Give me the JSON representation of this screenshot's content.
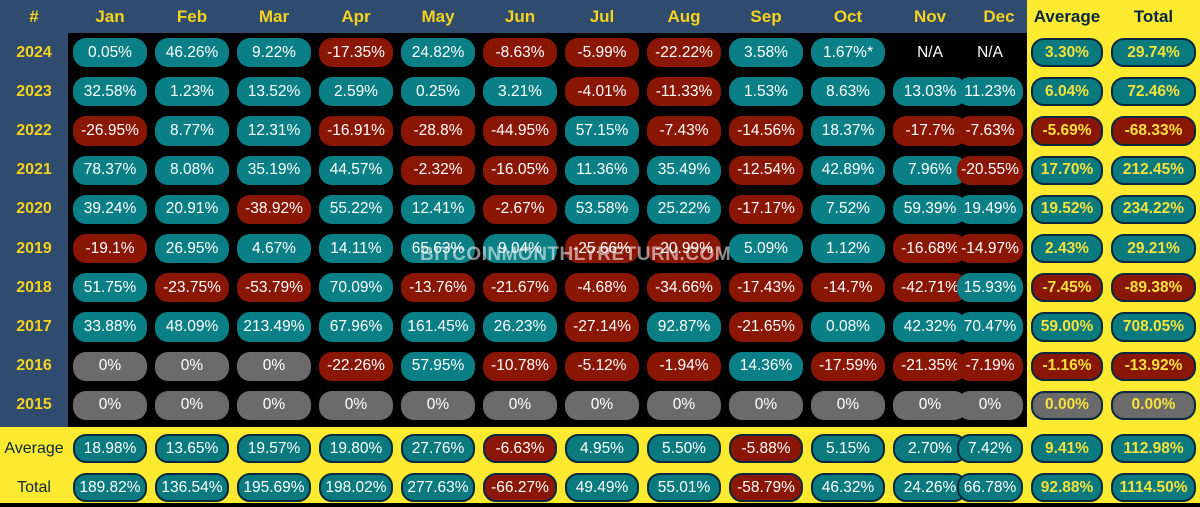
{
  "chart_data": {
    "type": "table",
    "corner_label": "#",
    "columns": [
      "Jan",
      "Feb",
      "Mar",
      "Apr",
      "May",
      "Jun",
      "Jul",
      "Aug",
      "Sep",
      "Oct",
      "Nov",
      "Dec",
      "Average",
      "Total"
    ],
    "rows": [
      {
        "label": "2024",
        "values": [
          "0.05%",
          "46.26%",
          "9.22%",
          "-17.35%",
          "24.82%",
          "-8.63%",
          "-5.99%",
          "-22.22%",
          "3.58%",
          "1.67%*",
          "N/A",
          "N/A",
          "3.30%",
          "29.74%"
        ]
      },
      {
        "label": "2023",
        "values": [
          "32.58%",
          "1.23%",
          "13.52%",
          "2.59%",
          "0.25%",
          "3.21%",
          "-4.01%",
          "-11.33%",
          "1.53%",
          "8.63%",
          "13.03%",
          "11.23%",
          "6.04%",
          "72.46%"
        ]
      },
      {
        "label": "2022",
        "values": [
          "-26.95%",
          "8.77%",
          "12.31%",
          "-16.91%",
          "-28.8%",
          "-44.95%",
          "57.15%",
          "-7.43%",
          "-14.56%",
          "18.37%",
          "-17.7%",
          "-7.63%",
          "-5.69%",
          "-68.33%"
        ]
      },
      {
        "label": "2021",
        "values": [
          "78.37%",
          "8.08%",
          "35.19%",
          "44.57%",
          "-2.32%",
          "-16.05%",
          "11.36%",
          "35.49%",
          "-12.54%",
          "42.89%",
          "7.96%",
          "-20.55%",
          "17.70%",
          "212.45%"
        ]
      },
      {
        "label": "2020",
        "values": [
          "39.24%",
          "20.91%",
          "-38.92%",
          "55.22%",
          "12.41%",
          "-2.67%",
          "53.58%",
          "25.22%",
          "-17.17%",
          "7.52%",
          "59.39%",
          "19.49%",
          "19.52%",
          "234.22%"
        ]
      },
      {
        "label": "2019",
        "values": [
          "-19.1%",
          "26.95%",
          "4.67%",
          "14.11%",
          "65.63%",
          "9.04%",
          "-25.66%",
          "-20.99%",
          "5.09%",
          "1.12%",
          "-16.68%",
          "-14.97%",
          "2.43%",
          "29.21%"
        ]
      },
      {
        "label": "2018",
        "values": [
          "51.75%",
          "-23.75%",
          "-53.79%",
          "70.09%",
          "-13.76%",
          "-21.67%",
          "-4.68%",
          "-34.66%",
          "-17.43%",
          "-14.7%",
          "-42.71%",
          "15.93%",
          "-7.45%",
          "-89.38%"
        ]
      },
      {
        "label": "2017",
        "values": [
          "33.88%",
          "48.09%",
          "213.49%",
          "67.96%",
          "161.45%",
          "26.23%",
          "-27.14%",
          "92.87%",
          "-21.65%",
          "0.08%",
          "42.32%",
          "70.47%",
          "59.00%",
          "708.05%"
        ]
      },
      {
        "label": "2016",
        "values": [
          "0%",
          "0%",
          "0%",
          "-22.26%",
          "57.95%",
          "-10.78%",
          "-5.12%",
          "-1.94%",
          "14.36%",
          "-17.59%",
          "-21.35%",
          "-7.19%",
          "-1.16%",
          "-13.92%"
        ]
      },
      {
        "label": "2015",
        "values": [
          "0%",
          "0%",
          "0%",
          "0%",
          "0%",
          "0%",
          "0%",
          "0%",
          "0%",
          "0%",
          "0%",
          "0%",
          "0.00%",
          "0.00%"
        ]
      },
      {
        "label": "Average",
        "values": [
          "18.98%",
          "13.65%",
          "19.57%",
          "19.80%",
          "27.76%",
          "-6.63%",
          "4.95%",
          "5.50%",
          "-5.88%",
          "5.15%",
          "2.70%",
          "7.42%",
          "9.41%",
          "112.98%"
        ]
      },
      {
        "label": "Total",
        "values": [
          "189.82%",
          "136.54%",
          "195.69%",
          "198.02%",
          "277.63%",
          "-66.27%",
          "49.49%",
          "55.01%",
          "-58.79%",
          "46.32%",
          "24.26%",
          "66.78%",
          "92.88%",
          "1114.50%"
        ]
      }
    ],
    "colors": {
      "positive": "#0a7f86",
      "negative": "#8a1606",
      "zero": "#6b6b6b",
      "header_bg": "#2f4b6e",
      "header_text": "#f6d21e",
      "summary_bg": "#fbea2f",
      "summary_text_dark": "#0a2740",
      "summary_value_text": "#f6e23a"
    }
  },
  "watermark": "BITCOINMONTHLYRETURN.COM"
}
